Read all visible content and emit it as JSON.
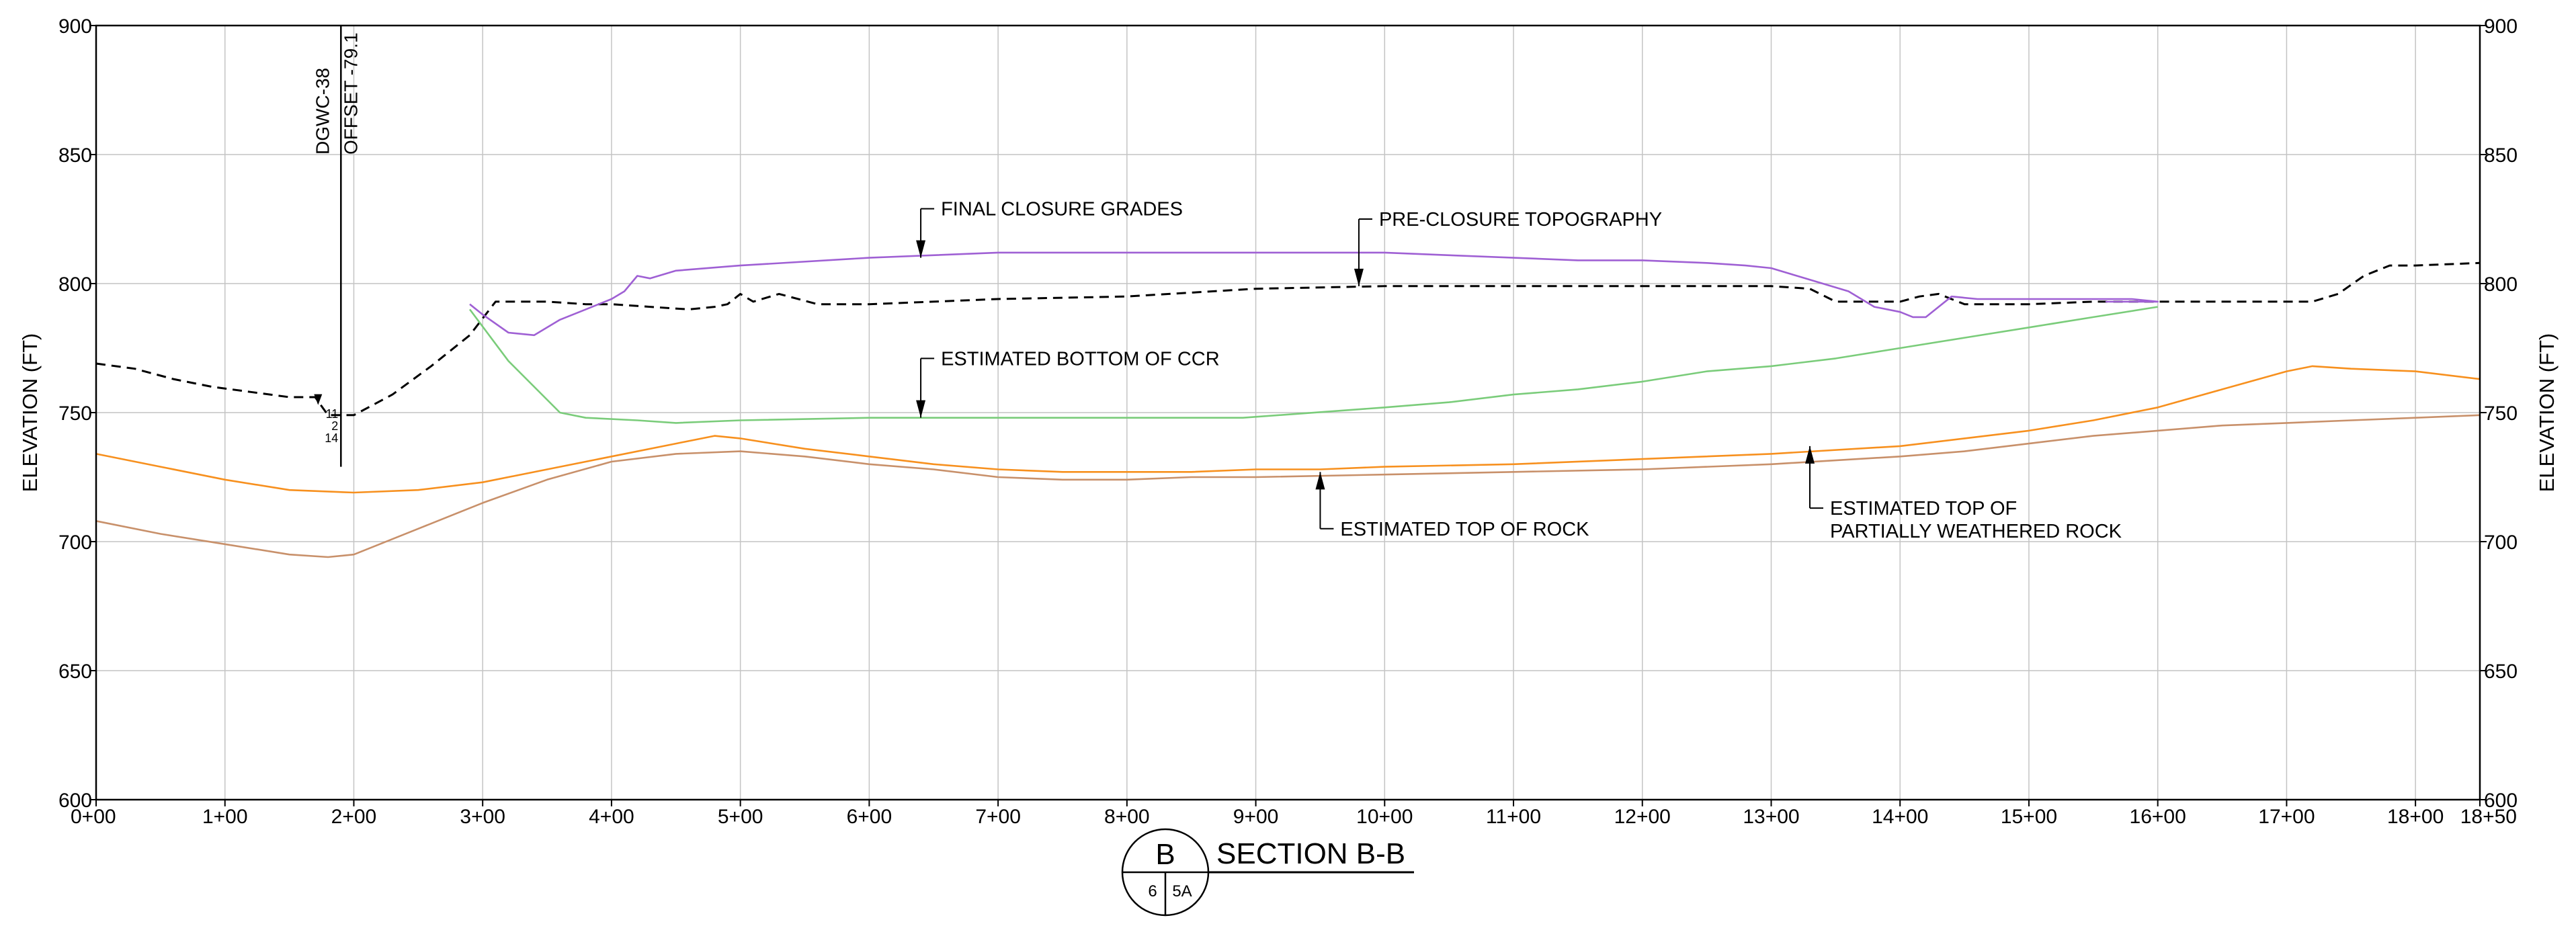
{
  "chart_data": {
    "type": "line",
    "title": "",
    "xlabel": "",
    "ylabel": "ELEVATION (FT)",
    "ylabel_right": "ELEVATION (FT)",
    "xlim": [
      0,
      1850
    ],
    "ylim": [
      600,
      900
    ],
    "grid": true,
    "x_ticks": [
      0,
      100,
      200,
      300,
      400,
      500,
      600,
      700,
      800,
      900,
      1000,
      1100,
      1200,
      1300,
      1400,
      1500,
      1600,
      1700,
      1800,
      1850
    ],
    "x_tick_labels": [
      "0+00",
      "1+00",
      "2+00",
      "3+00",
      "4+00",
      "5+00",
      "6+00",
      "7+00",
      "8+00",
      "9+00",
      "10+00",
      "11+00",
      "12+00",
      "13+00",
      "14+00",
      "15+00",
      "16+00",
      "17+00",
      "18+00",
      "18+50"
    ],
    "y_ticks": [
      600,
      650,
      700,
      750,
      800,
      850,
      900
    ],
    "y_tick_labels": [
      "600",
      "650",
      "700",
      "750",
      "800",
      "850",
      "900"
    ],
    "series": [
      {
        "name": "PRE-CLOSURE TOPOGRAPHY",
        "color": "#000000",
        "dash": true,
        "x": [
          0,
          30,
          60,
          90,
          120,
          150,
          170,
          180,
          200,
          230,
          260,
          290,
          310,
          330,
          350,
          380,
          400,
          430,
          460,
          480,
          490,
          500,
          510,
          530,
          560,
          580,
          600,
          650,
          700,
          800,
          900,
          1000,
          1100,
          1200,
          1300,
          1330,
          1350,
          1380,
          1400,
          1415,
          1430,
          1450,
          1500,
          1550,
          1600,
          1650,
          1700,
          1720,
          1740,
          1760,
          1780,
          1800,
          1850
        ],
        "y": [
          769,
          767,
          763,
          760,
          758,
          756,
          756,
          749,
          749,
          757,
          768,
          780,
          793,
          793,
          793,
          792,
          792,
          791,
          790,
          791,
          792,
          796,
          793,
          796,
          792,
          792,
          792,
          793,
          794,
          795,
          798,
          799,
          799,
          799,
          799,
          798,
          793,
          793,
          793,
          795,
          796,
          792,
          792,
          793,
          793,
          793,
          793,
          793,
          796,
          803,
          807,
          807,
          808
        ]
      },
      {
        "name": "FINAL CLOSURE GRADES",
        "color": "#9f60d4",
        "dash": false,
        "x": [
          290,
          300,
          320,
          340,
          360,
          380,
          400,
          410,
          420,
          430,
          450,
          500,
          600,
          700,
          800,
          900,
          1000,
          1050,
          1100,
          1150,
          1200,
          1250,
          1280,
          1300,
          1320,
          1340,
          1360,
          1380,
          1400,
          1410,
          1420,
          1440,
          1460,
          1500,
          1540,
          1580,
          1600,
          1560,
          1575
        ],
        "y": [
          792,
          788,
          781,
          780,
          786,
          790,
          794,
          797,
          803,
          802,
          805,
          807,
          810,
          812,
          812,
          812,
          812,
          811,
          810,
          809,
          809,
          808,
          807,
          806,
          803,
          800,
          797,
          791,
          789,
          787,
          787,
          795,
          794,
          794,
          794,
          794,
          793,
          793,
          793
        ]
      },
      {
        "name": "ESTIMATED BOTTOM OF CCR",
        "color": "#7acc7a",
        "dash": false,
        "x": [
          290,
          320,
          360,
          380,
          420,
          450,
          500,
          600,
          700,
          800,
          890,
          1000,
          1050,
          1100,
          1150,
          1200,
          1250,
          1300,
          1350,
          1400,
          1450,
          1500,
          1550,
          1600
        ],
        "y": [
          790,
          770,
          750,
          748,
          747,
          746,
          747,
          748,
          748,
          748,
          748,
          752,
          754,
          757,
          759,
          762,
          766,
          768,
          771,
          775,
          779,
          783,
          787,
          791
        ]
      },
      {
        "name": "ESTIMATED TOP OF ROCK",
        "color": "#f7901e",
        "dash": false,
        "x": [
          0,
          50,
          100,
          150,
          200,
          250,
          300,
          350,
          400,
          450,
          480,
          500,
          550,
          600,
          650,
          700,
          750,
          800,
          850,
          900,
          950,
          1000,
          1100,
          1200,
          1300,
          1400,
          1450,
          1500,
          1550,
          1600,
          1650,
          1700,
          1720,
          1750,
          1800,
          1850
        ],
        "y": [
          734,
          729,
          724,
          720,
          719,
          720,
          723,
          728,
          733,
          738,
          741,
          740,
          736,
          733,
          730,
          728,
          727,
          727,
          727,
          728,
          728,
          729,
          730,
          732,
          734,
          737,
          740,
          743,
          747,
          752,
          759,
          766,
          768,
          767,
          766,
          763
        ]
      },
      {
        "name": "ESTIMATED TOP OF PARTIALLY WEATHERED ROCK",
        "color": "#c8906a",
        "dash": false,
        "x": [
          0,
          50,
          100,
          150,
          180,
          200,
          250,
          300,
          350,
          400,
          450,
          500,
          550,
          600,
          650,
          700,
          750,
          800,
          850,
          900,
          1000,
          1100,
          1200,
          1300,
          1400,
          1450,
          1500,
          1550,
          1600,
          1650,
          1700,
          1750,
          1800,
          1850
        ],
        "y": [
          708,
          703,
          699,
          695,
          694,
          695,
          705,
          715,
          724,
          731,
          734,
          735,
          733,
          730,
          728,
          725,
          724,
          724,
          725,
          725,
          726,
          727,
          728,
          730,
          733,
          735,
          738,
          741,
          743,
          745,
          746,
          747,
          748,
          749
        ]
      }
    ],
    "callouts": [
      {
        "lines": [
          "FINAL CLOSURE GRADES"
        ],
        "arrow_x": 640,
        "arrow_y": 810,
        "text_y": 829
      },
      {
        "lines": [
          "PRE-CLOSURE TOPOGRAPHY"
        ],
        "arrow_x": 980,
        "arrow_y": 799,
        "text_y": 825
      },
      {
        "lines": [
          "ESTIMATED BOTTOM OF CCR"
        ],
        "arrow_x": 640,
        "arrow_y": 748,
        "text_y": 771
      },
      {
        "lines": [
          "ESTIMATED TOP OF ROCK"
        ],
        "arrow_x": 950,
        "arrow_y": 727,
        "text_y": 705
      },
      {
        "lines": [
          "ESTIMATED TOP OF",
          "PARTIALLY WEATHERED ROCK"
        ],
        "arrow_x": 1330,
        "arrow_y": 737,
        "text_y": 713
      }
    ],
    "boring": {
      "name": "DGWC-38",
      "offset": "OFFSET -79.1",
      "station": 190,
      "top": 900,
      "bottom": 729,
      "values": [
        "11",
        "2",
        "14"
      ]
    },
    "section": {
      "letter": "B",
      "sheet_left": "6",
      "sheet_right": "5A",
      "title": "SECTION B-B"
    }
  }
}
